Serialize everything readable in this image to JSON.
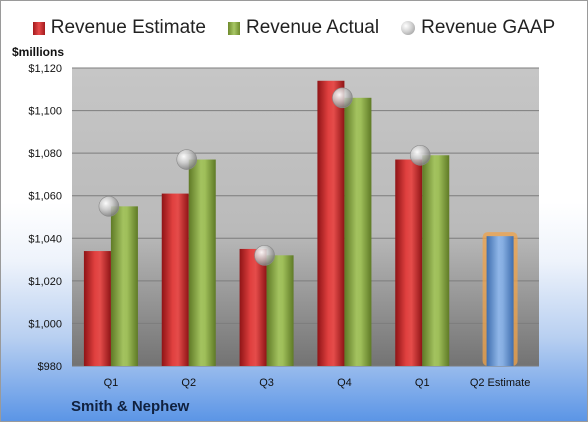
{
  "chart_data": {
    "type": "bar",
    "categories": [
      "Q1",
      "Q2",
      "Q3",
      "Q4",
      "Q1",
      "Q2 Estimate"
    ],
    "series": [
      {
        "name": "Revenue Estimate",
        "values": [
          1034,
          1061,
          1035,
          1114,
          1077,
          null
        ]
      },
      {
        "name": "Revenue Actual",
        "values": [
          1055,
          1077,
          1032,
          1106,
          1079,
          1041
        ]
      },
      {
        "name": "Revenue GAAP",
        "values": [
          1055,
          1077,
          1032,
          1106,
          1079,
          null
        ]
      }
    ],
    "ylabel": "$millions",
    "ylim": [
      980,
      1120
    ],
    "yticks": [
      980,
      1000,
      1020,
      1040,
      1060,
      1080,
      1100,
      1120
    ],
    "ytick_labels": [
      "$980",
      "$1,000",
      "$1,020",
      "$1,040",
      "$1,060",
      "$1,080",
      "$1,100",
      "$1,120"
    ],
    "grid": true,
    "legend_position": "top",
    "footer": "Smith & Nephew",
    "colors": {
      "estimate": "#cc2a2a",
      "actual": "#8fae48",
      "gaap": "#c0c0c0",
      "forecast": "#6c9bd6",
      "forecast_glow": "#f0a34a"
    }
  }
}
